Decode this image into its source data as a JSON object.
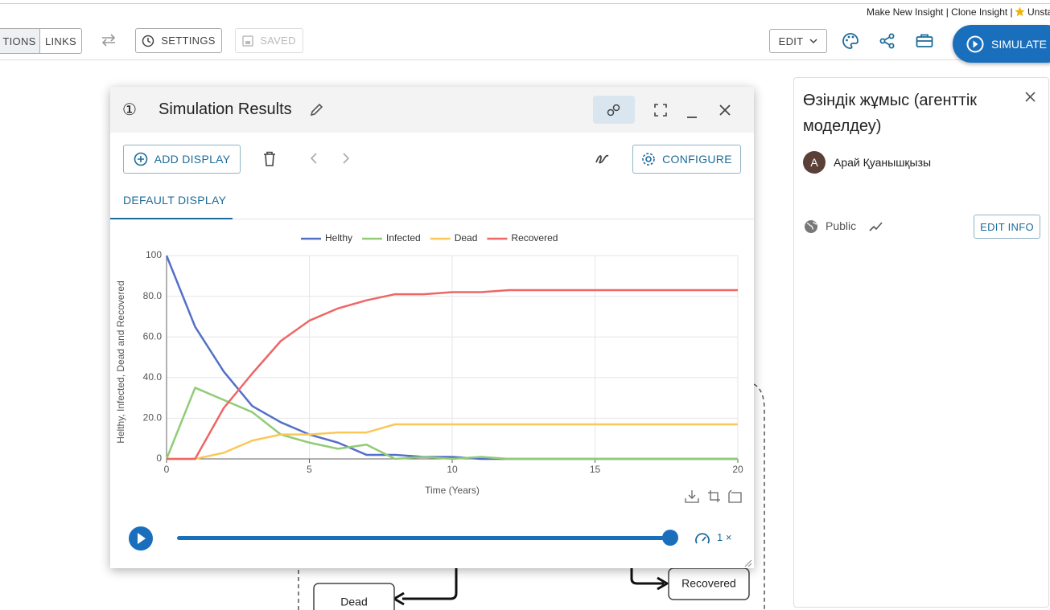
{
  "top_links": {
    "links": "Make New Insight | Clone Insight |",
    "unstar": "Unsta"
  },
  "toolbar": {
    "tab_1": "TIONS",
    "tab_2": "LINKS",
    "settings": "SETTINGS",
    "saved": "SAVED",
    "edit": "EDIT",
    "simulate": "SIMULATE"
  },
  "dialog": {
    "number": "①",
    "title": "Simulation Results",
    "add_display": "ADD DISPLAY",
    "configure": "CONFIGURE",
    "tab": "DEFAULT DISPLAY",
    "speed": "1 ×"
  },
  "chart_data": {
    "type": "line",
    "xlabel": "Time (Years)",
    "ylabel": "Helthy, Infected, Dead and Recovered",
    "x": [
      0,
      1,
      2,
      3,
      4,
      5,
      6,
      7,
      8,
      9,
      10,
      11,
      12,
      13,
      14,
      15,
      16,
      17,
      18,
      19,
      20
    ],
    "series": [
      {
        "name": "Helthy",
        "color": "#5470c6",
        "values": [
          100,
          65,
          43,
          26,
          18,
          12,
          8,
          2,
          2,
          1,
          1,
          0,
          0,
          0,
          0,
          0,
          0,
          0,
          0,
          0,
          0
        ]
      },
      {
        "name": "Infected",
        "color": "#91cc75",
        "values": [
          0,
          35,
          29,
          23,
          12,
          8,
          5,
          7,
          0,
          1,
          0,
          1,
          0,
          0,
          0,
          0,
          0,
          0,
          0,
          0,
          0
        ]
      },
      {
        "name": "Dead",
        "color": "#fac858",
        "values": [
          0,
          0,
          3,
          9,
          12,
          12,
          13,
          13,
          17,
          17,
          17,
          17,
          17,
          17,
          17,
          17,
          17,
          17,
          17,
          17,
          17
        ]
      },
      {
        "name": "Recovered",
        "color": "#ee6666",
        "values": [
          0,
          0,
          25,
          42,
          58,
          68,
          74,
          78,
          81,
          81,
          82,
          82,
          83,
          83,
          83,
          83,
          83,
          83,
          83,
          83,
          83
        ]
      }
    ],
    "xlim": [
      0,
      20
    ],
    "ylim": [
      0,
      100
    ],
    "xticks": [
      0,
      5,
      10,
      15,
      20
    ],
    "yticks": [
      0,
      {
        "value": 20,
        "label": "20.0"
      },
      {
        "value": 40,
        "label": "40.0"
      },
      {
        "value": 60,
        "label": "60.0"
      },
      {
        "value": 80,
        "label": "80.0"
      },
      100
    ],
    "grid": true,
    "legend": "top"
  },
  "diagram": {
    "nodes": [
      "Dead",
      "Recovered"
    ]
  },
  "panel": {
    "title": "Өзіндік жұмыс (агенттік моделдеу)",
    "avatar": "A",
    "author": "Арай Қуанышқызы",
    "visibility": "Public",
    "edit_info": "EDIT INFO"
  }
}
